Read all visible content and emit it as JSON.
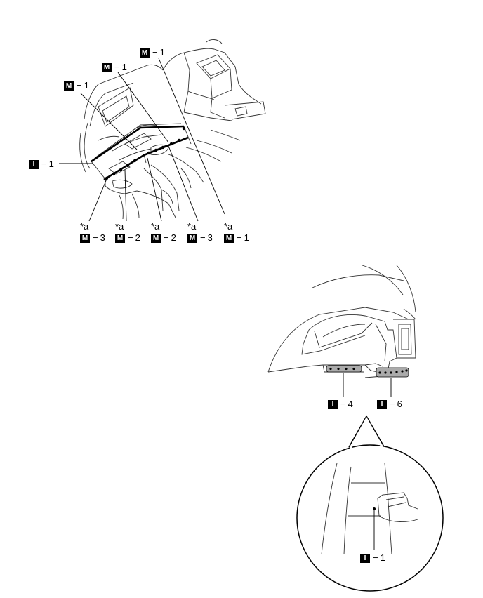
{
  "top_view": {
    "callouts_top": [
      {
        "code": "M",
        "sep": "−",
        "num": "1"
      },
      {
        "code": "M",
        "sep": "−",
        "num": "1"
      },
      {
        "code": "M",
        "sep": "−",
        "num": "1"
      }
    ],
    "callout_left": {
      "code": "I",
      "sep": "−",
      "num": "1"
    },
    "callouts_bottom": [
      {
        "star": "*a",
        "code": "M",
        "sep": "−",
        "num": "3"
      },
      {
        "star": "*a",
        "code": "M",
        "sep": "−",
        "num": "2"
      },
      {
        "star": "*a",
        "code": "M",
        "sep": "−",
        "num": "2"
      },
      {
        "star": "*a",
        "code": "M",
        "sep": "−",
        "num": "3"
      },
      {
        "star": "*a",
        "code": "M",
        "sep": "−",
        "num": "1"
      }
    ]
  },
  "side_view": {
    "callouts": [
      {
        "code": "I",
        "sep": "−",
        "num": "4"
      },
      {
        "code": "I",
        "sep": "−",
        "num": "6"
      }
    ]
  },
  "detail_view": {
    "callout": {
      "code": "I",
      "sep": "−",
      "num": "1"
    }
  }
}
